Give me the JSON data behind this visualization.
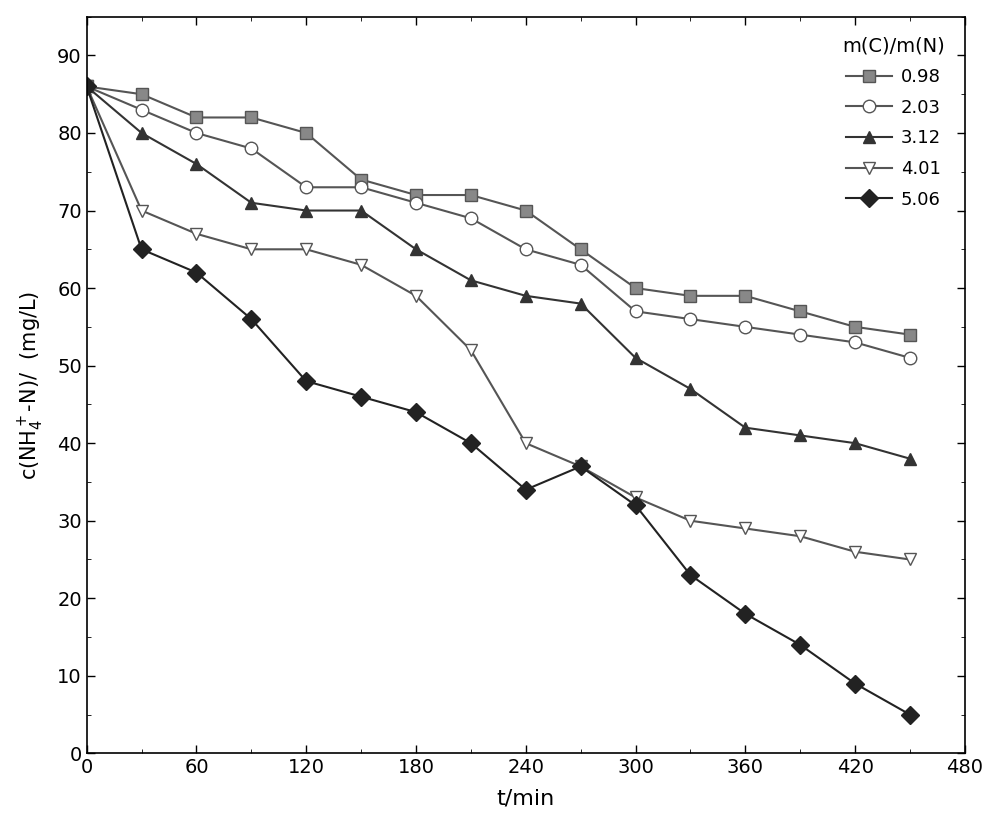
{
  "series": [
    {
      "label": "0.98",
      "marker": "s",
      "color": "#555555",
      "markerfacecolor": "#888888",
      "x": [
        0,
        30,
        60,
        90,
        120,
        150,
        180,
        210,
        240,
        270,
        300,
        330,
        360,
        390,
        420,
        450
      ],
      "y": [
        86,
        85,
        82,
        82,
        80,
        74,
        72,
        72,
        70,
        65,
        60,
        59,
        59,
        57,
        55,
        54
      ]
    },
    {
      "label": "2.03",
      "marker": "o",
      "color": "#555555",
      "markerfacecolor": "#ffffff",
      "x": [
        0,
        30,
        60,
        90,
        120,
        150,
        180,
        210,
        240,
        270,
        300,
        330,
        360,
        390,
        420,
        450
      ],
      "y": [
        86,
        83,
        80,
        78,
        73,
        73,
        71,
        69,
        65,
        63,
        57,
        56,
        55,
        54,
        53,
        51
      ]
    },
    {
      "label": "3.12",
      "marker": "^",
      "color": "#333333",
      "markerfacecolor": "#333333",
      "x": [
        0,
        30,
        60,
        90,
        120,
        150,
        180,
        210,
        240,
        270,
        300,
        330,
        360,
        390,
        420,
        450
      ],
      "y": [
        86,
        80,
        76,
        71,
        70,
        70,
        65,
        61,
        59,
        58,
        51,
        47,
        42,
        41,
        40,
        38
      ]
    },
    {
      "label": "4.01",
      "marker": "v",
      "color": "#555555",
      "markerfacecolor": "#ffffff",
      "x": [
        0,
        30,
        60,
        90,
        120,
        150,
        180,
        210,
        240,
        270,
        300,
        330,
        360,
        390,
        420,
        450
      ],
      "y": [
        86,
        70,
        67,
        65,
        65,
        63,
        59,
        52,
        40,
        37,
        33,
        30,
        29,
        28,
        26,
        25
      ]
    },
    {
      "label": "5.06",
      "marker": "D",
      "color": "#222222",
      "markerfacecolor": "#222222",
      "x": [
        0,
        30,
        60,
        90,
        120,
        150,
        180,
        210,
        240,
        270,
        300,
        330,
        360,
        390,
        420,
        450
      ],
      "y": [
        86,
        65,
        62,
        56,
        48,
        46,
        44,
        40,
        34,
        37,
        32,
        23,
        18,
        14,
        9,
        5
      ]
    }
  ],
  "xlabel": "t/min",
  "xlim": [
    0,
    480
  ],
  "ylim": [
    0,
    95
  ],
  "xticks": [
    0,
    60,
    120,
    180,
    240,
    300,
    360,
    420,
    480
  ],
  "yticks": [
    0,
    10,
    20,
    30,
    40,
    50,
    60,
    70,
    80,
    90
  ],
  "legend_title": "m(C)/m(N)",
  "background_color": "#ffffff",
  "markersize": 9,
  "linewidth": 1.5,
  "xlabel_fontsize": 16,
  "ylabel_fontsize": 15,
  "tick_labelsize": 14,
  "legend_fontsize": 13,
  "legend_title_fontsize": 14
}
